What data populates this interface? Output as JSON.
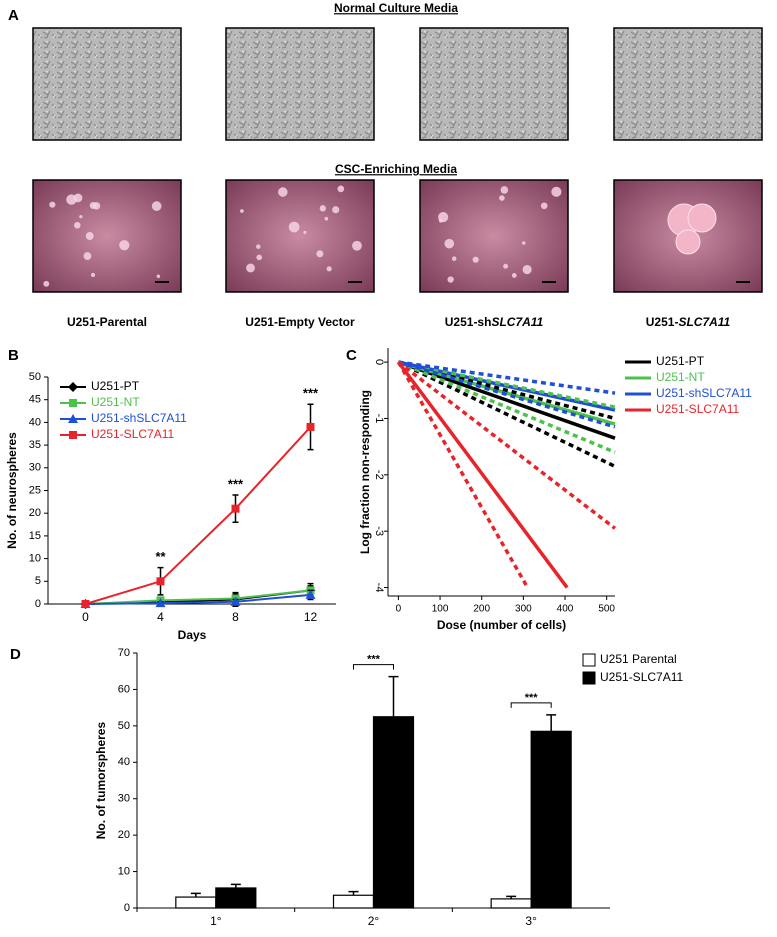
{
  "panel_a": {
    "label": "A",
    "rows": [
      {
        "title": "Normal Culture Media"
      },
      {
        "title": "CSC-Enriching  Media"
      }
    ],
    "captions": [
      [
        {
          "text": "U251-Parental"
        }
      ],
      [
        {
          "text": "U251-Empty  Vector"
        }
      ],
      [
        {
          "text": "U251-sh"
        },
        {
          "text": "SLC7A11",
          "italic": true
        }
      ],
      [
        {
          "text": "U251-"
        },
        {
          "text": "SLC7A11",
          "italic": true
        }
      ]
    ]
  },
  "chart_data": [
    {
      "type": "line",
      "panel_label": "B",
      "xlabel": "Days",
      "ylabel": "No. of neurospheres",
      "categories": [
        "0",
        "4",
        "8",
        "12"
      ],
      "ylim": [
        0,
        50
      ],
      "yticks": [
        0,
        5,
        10,
        15,
        20,
        25,
        30,
        35,
        40,
        45,
        50
      ],
      "legend": "upper left",
      "annotations": [
        null,
        "**",
        "***",
        "***"
      ],
      "series": [
        {
          "name": "U251-PT",
          "color": "#000000",
          "marker": "diamond",
          "values": [
            0,
            0.5,
            1,
            3
          ],
          "errors": [
            0,
            0.5,
            1.5,
            1.5
          ]
        },
        {
          "name": "U251-NT",
          "color": "#4cc24c",
          "marker": "square",
          "values": [
            0,
            0.8,
            1.2,
            3
          ],
          "errors": [
            0,
            0.5,
            1,
            1
          ]
        },
        {
          "name": "U251-shSLC7A11",
          "color": "#1f4fd8",
          "marker": "triangle",
          "values": [
            0,
            0.2,
            0.5,
            2
          ],
          "errors": [
            0,
            0.3,
            0.5,
            1
          ]
        },
        {
          "name": "U251-SLC7A11",
          "color": "#e8232a",
          "marker": "square",
          "values": [
            0,
            5,
            21,
            39
          ],
          "errors": [
            0,
            3,
            3,
            5
          ]
        }
      ]
    },
    {
      "type": "line",
      "panel_label": "C",
      "xlabel": "Dose (number of cells)",
      "ylabel": "Log fraction non-responding",
      "xlim": [
        -25,
        520
      ],
      "ylim": [
        -4.15,
        0.25
      ],
      "xticks": [
        0,
        100,
        200,
        300,
        400,
        500
      ],
      "yticks": [
        0,
        -1,
        -2,
        -3,
        -4
      ],
      "legend": "outside right",
      "series": [
        {
          "name": "U251-PT",
          "color": "#000000",
          "dashed": false,
          "x": [
            0,
            520
          ],
          "values": [
            0,
            -1.35
          ]
        },
        {
          "name": "U251-NT",
          "color": "#4cc24c",
          "dashed": false,
          "x": [
            0,
            520
          ],
          "values": [
            0,
            -1.1
          ]
        },
        {
          "name": "U251-shSLC7A11",
          "color": "#1f4fd8",
          "dashed": false,
          "x": [
            0,
            520
          ],
          "values": [
            0,
            -0.85
          ]
        },
        {
          "name": "U251-SLC7A11",
          "color": "#e8232a",
          "dashed": false,
          "x": [
            0,
            405
          ],
          "values": [
            0,
            -4
          ]
        },
        {
          "color": "#000000",
          "dashed": true,
          "x": [
            0,
            520
          ],
          "values": [
            0,
            -1.85
          ]
        },
        {
          "color": "#000000",
          "dashed": true,
          "x": [
            0,
            520
          ],
          "values": [
            0,
            -1.0
          ]
        },
        {
          "color": "#4cc24c",
          "dashed": true,
          "x": [
            0,
            520
          ],
          "values": [
            0,
            -1.6
          ]
        },
        {
          "color": "#4cc24c",
          "dashed": true,
          "x": [
            0,
            520
          ],
          "values": [
            0,
            -0.8
          ]
        },
        {
          "color": "#1f4fd8",
          "dashed": true,
          "x": [
            0,
            520
          ],
          "values": [
            0,
            -1.15
          ]
        },
        {
          "color": "#1f4fd8",
          "dashed": true,
          "x": [
            0,
            520
          ],
          "values": [
            0,
            -0.55
          ]
        },
        {
          "color": "#e8232a",
          "dashed": true,
          "x": [
            0,
            310
          ],
          "values": [
            0,
            -4
          ]
        },
        {
          "color": "#e8232a",
          "dashed": true,
          "x": [
            0,
            520
          ],
          "values": [
            0,
            -2.95
          ]
        }
      ]
    },
    {
      "type": "bar",
      "panel_label": "D",
      "ylabel": "No. of tumorspheres",
      "categories": [
        "1°",
        "2°",
        "3°"
      ],
      "ylim": [
        0,
        70
      ],
      "yticks": [
        0,
        10,
        20,
        30,
        40,
        50,
        60,
        70
      ],
      "legend": "upper right",
      "annotations": [
        null,
        "***",
        "***"
      ],
      "series": [
        {
          "name": "U251 Parental",
          "color": "#ffffff",
          "values": [
            3,
            3.5,
            2.5
          ],
          "errors": [
            1,
            1,
            0.7
          ]
        },
        {
          "name": "U251-SLC7A11",
          "color": "#000000",
          "values": [
            5.5,
            52.5,
            48.5
          ],
          "errors": [
            1,
            11,
            4.5
          ]
        }
      ]
    }
  ]
}
